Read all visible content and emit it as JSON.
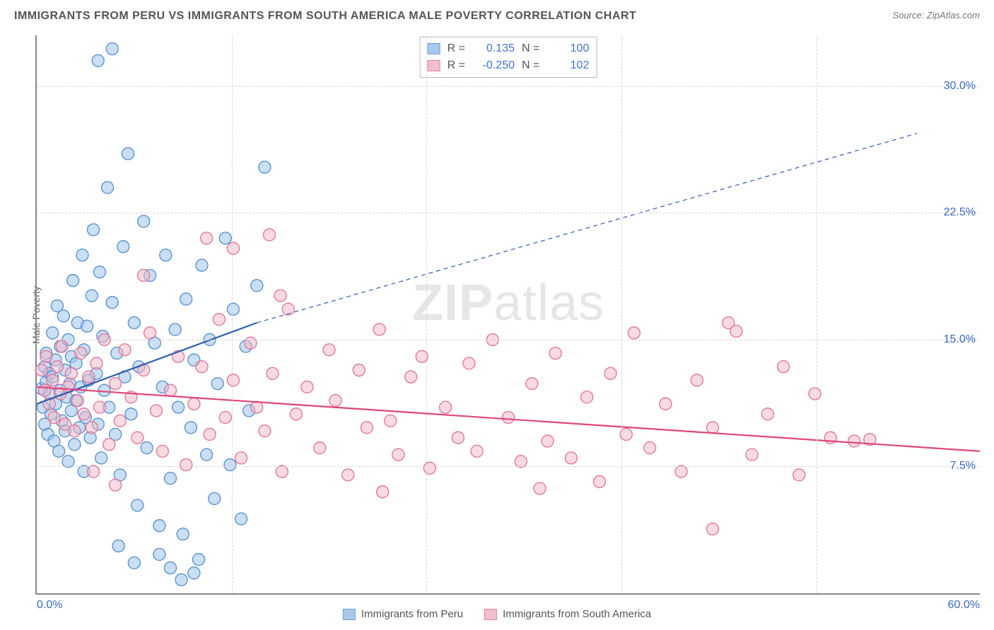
{
  "title": "IMMIGRANTS FROM PERU VS IMMIGRANTS FROM SOUTH AMERICA MALE POVERTY CORRELATION CHART",
  "source_prefix": "Source: ",
  "source_name": "ZipAtlas.com",
  "ylabel": "Male Poverty",
  "watermark_part1": "ZIP",
  "watermark_part2": "atlas",
  "chart": {
    "type": "scatter",
    "xlim": [
      0,
      60
    ],
    "ylim": [
      0,
      33
    ],
    "x_ticks": [
      0,
      60
    ],
    "x_tick_labels": [
      "0.0%",
      "60.0%"
    ],
    "x_minor_ticks": [
      12.4,
      24.8,
      37.2,
      49.6
    ],
    "y_ticks": [
      7.5,
      15.0,
      22.5,
      30.0
    ],
    "y_tick_labels": [
      "7.5%",
      "15.0%",
      "22.5%",
      "30.0%"
    ],
    "grid_color": "#d6d6d6",
    "axis_color": "#888888",
    "background_color": "#ffffff",
    "marker_radius": 8.5,
    "marker_stroke_width": 1.4,
    "line_width": 2.2,
    "series": [
      {
        "name": "Immigrants from Peru",
        "label": "Immigrants from Peru",
        "fill_color": "#9ec5ea",
        "stroke_color": "#5b94d4",
        "fill_opacity": 0.55,
        "line_color": "#2e5db0",
        "r_label": "R =",
        "r_value": "0.135",
        "n_label": "N =",
        "n_value": "100",
        "regression": {
          "solid": {
            "x1": 0,
            "y1": 11.2,
            "x2": 14,
            "y2": 16.0
          },
          "dashed": {
            "x1": 14,
            "y1": 16.0,
            "x2": 56,
            "y2": 27.2
          }
        },
        "points": [
          [
            0.3,
            12.1
          ],
          [
            0.4,
            11.0
          ],
          [
            0.5,
            13.4
          ],
          [
            0.5,
            10.0
          ],
          [
            0.6,
            14.2
          ],
          [
            0.6,
            12.5
          ],
          [
            0.7,
            9.4
          ],
          [
            0.8,
            13.0
          ],
          [
            0.8,
            11.8
          ],
          [
            0.9,
            10.6
          ],
          [
            1.0,
            12.8
          ],
          [
            1.0,
            15.4
          ],
          [
            1.1,
            9.0
          ],
          [
            1.2,
            13.8
          ],
          [
            1.2,
            11.2
          ],
          [
            1.3,
            17.0
          ],
          [
            1.4,
            8.4
          ],
          [
            1.5,
            14.6
          ],
          [
            1.5,
            12.0
          ],
          [
            1.6,
            10.2
          ],
          [
            1.7,
            16.4
          ],
          [
            1.8,
            13.2
          ],
          [
            1.8,
            9.6
          ],
          [
            1.9,
            11.6
          ],
          [
            2.0,
            15.0
          ],
          [
            2.0,
            7.8
          ],
          [
            2.1,
            12.4
          ],
          [
            2.2,
            14.0
          ],
          [
            2.2,
            10.8
          ],
          [
            2.3,
            18.5
          ],
          [
            2.4,
            8.8
          ],
          [
            2.5,
            13.6
          ],
          [
            2.5,
            11.4
          ],
          [
            2.6,
            16.0
          ],
          [
            2.7,
            9.8
          ],
          [
            2.8,
            12.2
          ],
          [
            2.9,
            20.0
          ],
          [
            3.0,
            14.4
          ],
          [
            3.0,
            7.2
          ],
          [
            3.1,
            10.4
          ],
          [
            3.2,
            15.8
          ],
          [
            3.3,
            12.6
          ],
          [
            3.4,
            9.2
          ],
          [
            3.5,
            17.6
          ],
          [
            3.6,
            21.5
          ],
          [
            3.8,
            13.0
          ],
          [
            3.9,
            10.0
          ],
          [
            4.0,
            19.0
          ],
          [
            4.1,
            8.0
          ],
          [
            4.2,
            15.2
          ],
          [
            4.3,
            12.0
          ],
          [
            4.5,
            24.0
          ],
          [
            4.6,
            11.0
          ],
          [
            4.8,
            17.2
          ],
          [
            5.0,
            9.4
          ],
          [
            5.1,
            14.2
          ],
          [
            5.3,
            7.0
          ],
          [
            5.5,
            20.5
          ],
          [
            5.6,
            12.8
          ],
          [
            5.8,
            26.0
          ],
          [
            6.0,
            10.6
          ],
          [
            6.2,
            16.0
          ],
          [
            6.4,
            5.2
          ],
          [
            6.5,
            13.4
          ],
          [
            6.8,
            22.0
          ],
          [
            7.0,
            8.6
          ],
          [
            7.2,
            18.8
          ],
          [
            7.5,
            14.8
          ],
          [
            7.8,
            4.0
          ],
          [
            8.0,
            12.2
          ],
          [
            8.2,
            20.0
          ],
          [
            8.5,
            6.8
          ],
          [
            8.8,
            15.6
          ],
          [
            9.0,
            11.0
          ],
          [
            9.3,
            3.5
          ],
          [
            9.5,
            17.4
          ],
          [
            9.8,
            9.8
          ],
          [
            10.0,
            13.8
          ],
          [
            10.3,
            2.0
          ],
          [
            10.5,
            19.4
          ],
          [
            10.8,
            8.2
          ],
          [
            11.0,
            15.0
          ],
          [
            11.3,
            5.6
          ],
          [
            11.5,
            12.4
          ],
          [
            12.0,
            21.0
          ],
          [
            12.3,
            7.6
          ],
          [
            12.5,
            16.8
          ],
          [
            13.0,
            4.4
          ],
          [
            13.3,
            14.6
          ],
          [
            13.5,
            10.8
          ],
          [
            14.0,
            18.2
          ],
          [
            14.5,
            25.2
          ],
          [
            4.8,
            32.2
          ],
          [
            3.9,
            31.5
          ],
          [
            6.2,
            1.8
          ],
          [
            7.8,
            2.3
          ],
          [
            8.5,
            1.5
          ],
          [
            5.2,
            2.8
          ],
          [
            9.2,
            0.8
          ],
          [
            10.0,
            1.2
          ]
        ]
      },
      {
        "name": "Immigrants from South America",
        "label": "Immigrants from South America",
        "fill_color": "#f2b8c6",
        "stroke_color": "#e6779b",
        "fill_opacity": 0.5,
        "line_color": "#e0457a",
        "r_label": "R =",
        "r_value": "-0.250",
        "n_label": "N =",
        "n_value": "102",
        "regression": {
          "solid": {
            "x1": 0,
            "y1": 12.2,
            "x2": 60,
            "y2": 8.4
          },
          "dashed": null
        },
        "points": [
          [
            0.3,
            13.2
          ],
          [
            0.5,
            12.0
          ],
          [
            0.6,
            14.0
          ],
          [
            0.8,
            11.2
          ],
          [
            1.0,
            12.6
          ],
          [
            1.1,
            10.4
          ],
          [
            1.3,
            13.4
          ],
          [
            1.5,
            11.8
          ],
          [
            1.6,
            14.6
          ],
          [
            1.8,
            10.0
          ],
          [
            2.0,
            12.2
          ],
          [
            2.2,
            13.0
          ],
          [
            2.4,
            9.6
          ],
          [
            2.6,
            11.4
          ],
          [
            2.8,
            14.2
          ],
          [
            3.0,
            10.6
          ],
          [
            3.3,
            12.8
          ],
          [
            3.5,
            9.8
          ],
          [
            3.8,
            13.6
          ],
          [
            4.0,
            11.0
          ],
          [
            4.3,
            15.0
          ],
          [
            4.6,
            8.8
          ],
          [
            5.0,
            12.4
          ],
          [
            5.3,
            10.2
          ],
          [
            5.6,
            14.4
          ],
          [
            6.0,
            11.6
          ],
          [
            6.4,
            9.2
          ],
          [
            6.8,
            13.2
          ],
          [
            7.2,
            15.4
          ],
          [
            7.6,
            10.8
          ],
          [
            8.0,
            8.4
          ],
          [
            8.5,
            12.0
          ],
          [
            9.0,
            14.0
          ],
          [
            9.5,
            7.6
          ],
          [
            10.0,
            11.2
          ],
          [
            10.5,
            13.4
          ],
          [
            11.0,
            9.4
          ],
          [
            11.6,
            16.2
          ],
          [
            12.0,
            10.4
          ],
          [
            12.5,
            12.6
          ],
          [
            13.0,
            8.0
          ],
          [
            13.6,
            14.8
          ],
          [
            14.0,
            11.0
          ],
          [
            14.5,
            9.6
          ],
          [
            15.0,
            13.0
          ],
          [
            15.6,
            7.2
          ],
          [
            16.0,
            16.8
          ],
          [
            16.5,
            10.6
          ],
          [
            17.2,
            12.2
          ],
          [
            18.0,
            8.6
          ],
          [
            18.6,
            14.4
          ],
          [
            19.0,
            11.4
          ],
          [
            19.8,
            7.0
          ],
          [
            20.5,
            13.2
          ],
          [
            21.0,
            9.8
          ],
          [
            21.8,
            15.6
          ],
          [
            22.5,
            10.2
          ],
          [
            23.0,
            8.2
          ],
          [
            23.8,
            12.8
          ],
          [
            24.5,
            14.0
          ],
          [
            25.0,
            7.4
          ],
          [
            26.0,
            11.0
          ],
          [
            26.8,
            9.2
          ],
          [
            27.5,
            13.6
          ],
          [
            28.0,
            8.4
          ],
          [
            29.0,
            15.0
          ],
          [
            30.0,
            10.4
          ],
          [
            30.8,
            7.8
          ],
          [
            31.5,
            12.4
          ],
          [
            32.5,
            9.0
          ],
          [
            33.0,
            14.2
          ],
          [
            34.0,
            8.0
          ],
          [
            35.0,
            11.6
          ],
          [
            35.8,
            6.6
          ],
          [
            36.5,
            13.0
          ],
          [
            37.5,
            9.4
          ],
          [
            38.0,
            15.4
          ],
          [
            39.0,
            8.6
          ],
          [
            40.0,
            11.2
          ],
          [
            41.0,
            7.2
          ],
          [
            42.0,
            12.6
          ],
          [
            43.0,
            9.8
          ],
          [
            44.0,
            16.0
          ],
          [
            44.5,
            15.5
          ],
          [
            45.5,
            8.2
          ],
          [
            46.5,
            10.6
          ],
          [
            47.5,
            13.4
          ],
          [
            48.5,
            7.0
          ],
          [
            49.5,
            11.8
          ],
          [
            50.5,
            9.2
          ],
          [
            43.0,
            3.8
          ],
          [
            52.0,
            9.0
          ],
          [
            53.0,
            9.1
          ],
          [
            10.8,
            21.0
          ],
          [
            12.5,
            20.4
          ],
          [
            14.8,
            21.2
          ],
          [
            3.6,
            7.2
          ],
          [
            5.0,
            6.4
          ],
          [
            22.0,
            6.0
          ],
          [
            6.8,
            18.8
          ],
          [
            15.5,
            17.6
          ],
          [
            32.0,
            6.2
          ]
        ]
      }
    ]
  }
}
